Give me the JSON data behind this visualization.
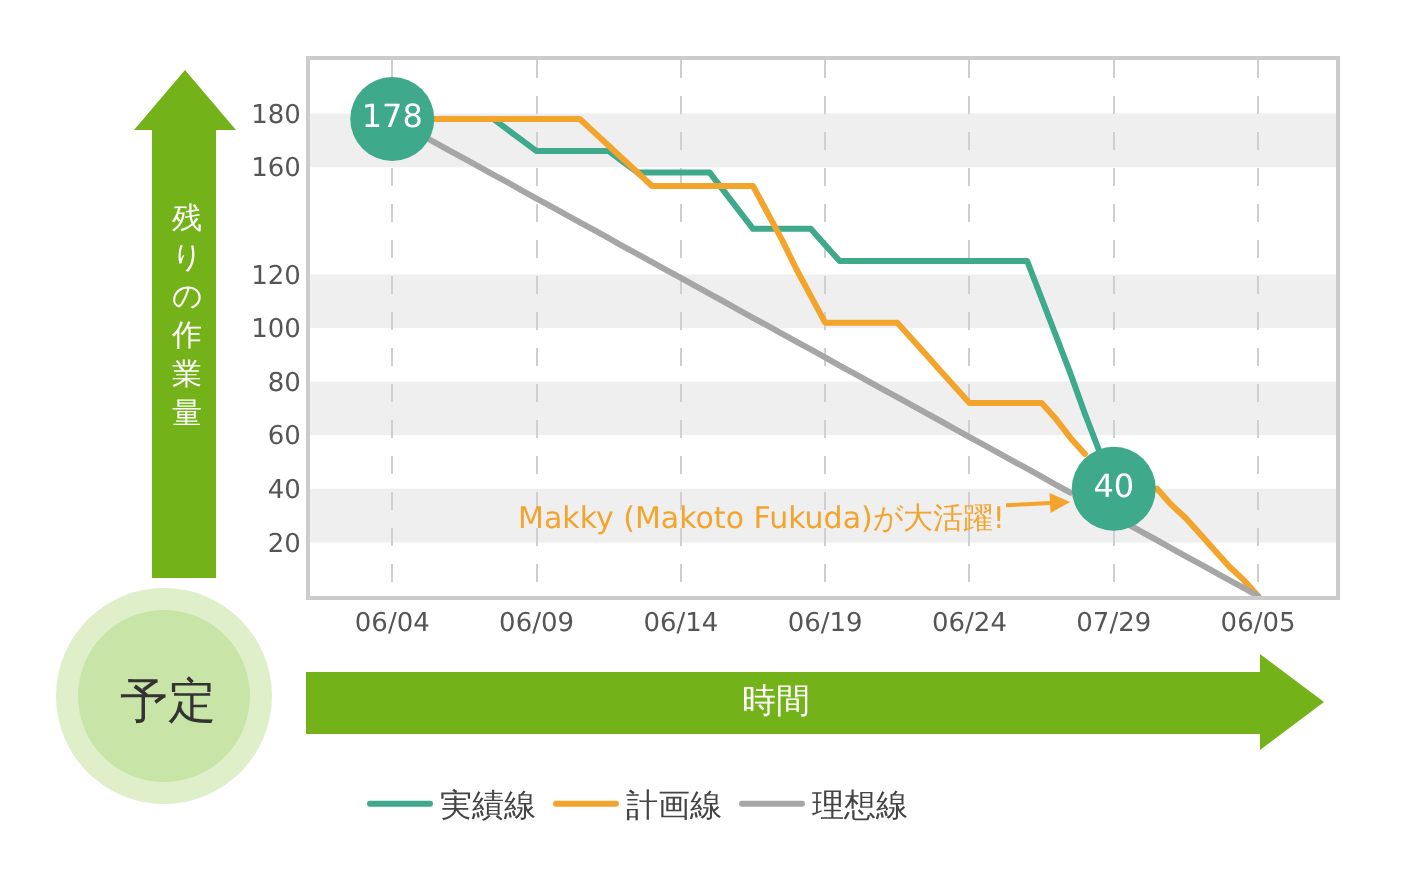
{
  "chart_data": {
    "type": "line",
    "title": "予定",
    "xlabel": "時間",
    "ylabel": "残りの作業量",
    "categories": [
      "06/04",
      null,
      null,
      null,
      null,
      null,
      null,
      null,
      null,
      null,
      "06/09",
      null,
      null,
      null,
      null,
      null,
      null,
      null,
      null,
      null,
      "06/14",
      null,
      null,
      null,
      null,
      null,
      null,
      null,
      null,
      null,
      "06/19",
      null,
      null,
      null,
      null,
      null,
      null,
      null,
      null,
      null,
      "06/24",
      null,
      null,
      null,
      null,
      null,
      null,
      null,
      null,
      null,
      "07/29",
      null,
      null,
      null,
      null,
      null,
      null,
      null,
      null,
      null,
      "06/05"
    ],
    "series": [
      {
        "name": "実績線",
        "color": "#3fa98b",
        "values": [
          178,
          178,
          178,
          178,
          178,
          178,
          178,
          178,
          174,
          170,
          166,
          166,
          166,
          166,
          166,
          166,
          162,
          158,
          158,
          158,
          158,
          158,
          158,
          151,
          144,
          137,
          137,
          137,
          137,
          137,
          131,
          125,
          125,
          125,
          125,
          125,
          125,
          125,
          125,
          125,
          125,
          125,
          125,
          125,
          125,
          111,
          97,
          83,
          68,
          54,
          40,
          null,
          null,
          null,
          null,
          null,
          null,
          null,
          null,
          null,
          null
        ],
        "value_labels": [
          "178",
          null,
          null,
          null,
          null,
          null,
          null,
          null,
          null,
          null,
          null,
          null,
          null,
          null,
          null,
          null,
          null,
          null,
          null,
          null,
          null,
          null,
          null,
          null,
          null,
          null,
          null,
          null,
          null,
          null,
          null,
          null,
          null,
          null,
          null,
          null,
          null,
          null,
          null,
          null,
          null,
          null,
          null,
          null,
          null,
          null,
          null,
          null,
          null,
          null,
          "40",
          null,
          null,
          null,
          null,
          null,
          null,
          null,
          null,
          null,
          null
        ]
      },
      {
        "name": "計画線",
        "color": "#f2a42c",
        "values": [
          null,
          null,
          null,
          178,
          178,
          178,
          178,
          178,
          178,
          178,
          178,
          178,
          178,
          178,
          173,
          168,
          163,
          158,
          153,
          153,
          153,
          153,
          153,
          153,
          153,
          153,
          143,
          133,
          122,
          112,
          102,
          102,
          102,
          102,
          102,
          102,
          96,
          90,
          84,
          78,
          72,
          72,
          72,
          72,
          72,
          72,
          66,
          59,
          53,
          null,
          null,
          null,
          null,
          40,
          34,
          29,
          23,
          17,
          11,
          6,
          0
        ]
      },
      {
        "name": "理想線",
        "color": "#a6a6a6",
        "values": [
          178.0,
          175.0,
          172.1,
          169.1,
          166.1,
          163.2,
          160.2,
          157.2,
          154.3,
          151.3,
          148.3,
          145.4,
          142.4,
          139.4,
          136.5,
          133.5,
          130.5,
          127.6,
          124.6,
          121.6,
          118.7,
          115.7,
          112.7,
          109.8,
          106.8,
          103.8,
          100.9,
          97.9,
          94.9,
          92.0,
          89.0,
          86.0,
          83.1,
          80.1,
          77.1,
          74.2,
          71.2,
          68.2,
          65.3,
          62.3,
          59.3,
          56.4,
          53.4,
          50.4,
          47.5,
          44.5,
          41.5,
          38.6,
          null,
          null,
          null,
          26.7,
          23.7,
          20.8,
          17.8,
          14.8,
          11.9,
          8.9,
          5.9,
          3.0,
          0.0
        ]
      }
    ],
    "ylim": [
      0,
      200
    ],
    "yticks": [
      20,
      40,
      60,
      80,
      100,
      120,
      160,
      180
    ],
    "grid": true,
    "legend": "bottom",
    "line_style": "solid",
    "annotations": [
      "Makky (Makoto Fukuda)が大活躍!"
    ]
  }
}
